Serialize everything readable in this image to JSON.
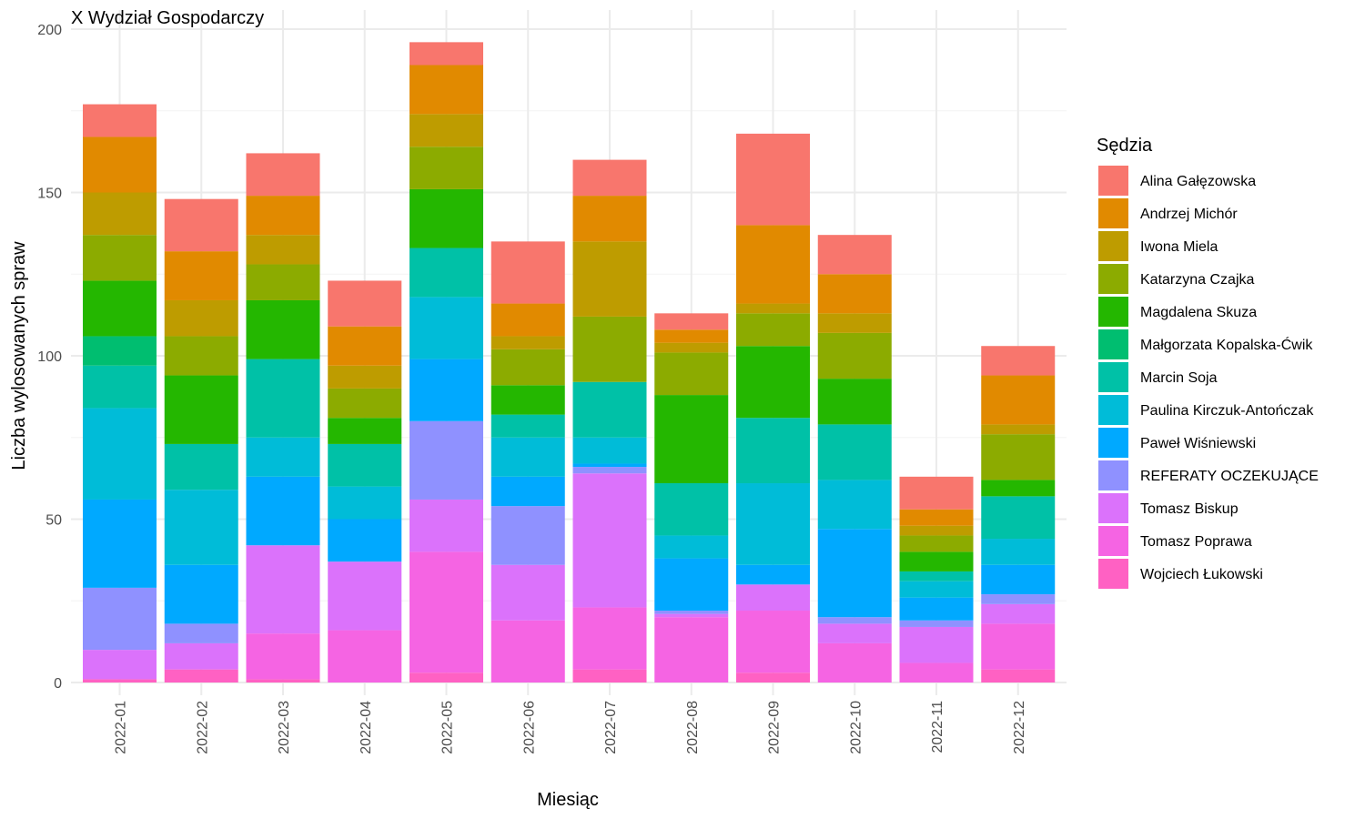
{
  "chart_data": {
    "type": "bar",
    "stacked": true,
    "title": "X Wydział Gospodarczy",
    "xlabel": "Miesiąc",
    "ylabel": "Liczba wylosowanych spraw",
    "ylim": [
      0,
      200
    ],
    "yticks": [
      0,
      50,
      100,
      150,
      200
    ],
    "grid": true,
    "legend": {
      "title": "Sędzia",
      "position": "right"
    },
    "categories": [
      "2022-01",
      "2022-02",
      "2022-03",
      "2022-04",
      "2022-05",
      "2022-06",
      "2022-07",
      "2022-08",
      "2022-09",
      "2022-10",
      "2022-11",
      "2022-12"
    ],
    "series": [
      {
        "name": "Wojciech Łukowski",
        "color": "#FF61C3",
        "values": [
          1,
          4,
          1,
          0,
          3,
          0,
          4,
          0,
          3,
          0,
          0,
          4
        ]
      },
      {
        "name": "Tomasz Poprawa",
        "color": "#F564E3",
        "values": [
          0,
          0,
          14,
          16,
          37,
          19,
          19,
          20,
          19,
          12,
          6,
          14
        ]
      },
      {
        "name": "Tomasz Biskup",
        "color": "#DB72FB",
        "values": [
          9,
          8,
          27,
          21,
          16,
          17,
          41,
          1,
          8,
          6,
          11,
          6
        ]
      },
      {
        "name": "REFERATY OCZEKUJĄCE",
        "color": "#8F91FF",
        "values": [
          19,
          6,
          0,
          0,
          24,
          18,
          2,
          1,
          0,
          2,
          2,
          3
        ]
      },
      {
        "name": "Paweł Wiśniewski",
        "color": "#00A9FF",
        "values": [
          27,
          18,
          21,
          13,
          19,
          9,
          1,
          16,
          6,
          27,
          7,
          9
        ]
      },
      {
        "name": "Paulina Kirczuk-Antończak",
        "color": "#00BCD8",
        "values": [
          28,
          23,
          12,
          10,
          19,
          12,
          8,
          7,
          25,
          15,
          5,
          8
        ]
      },
      {
        "name": "Marcin Soja",
        "color": "#00C1A7",
        "values": [
          13,
          14,
          24,
          13,
          15,
          7,
          17,
          16,
          20,
          17,
          3,
          13
        ]
      },
      {
        "name": "Małgorzata Kopalska-Ćwik",
        "color": "#00BE70",
        "values": [
          9,
          0,
          0,
          0,
          0,
          0,
          0,
          0,
          0,
          0,
          0,
          0
        ]
      },
      {
        "name": "Magdalena Skuza",
        "color": "#24B700",
        "values": [
          17,
          21,
          18,
          8,
          18,
          9,
          0,
          27,
          22,
          14,
          6,
          5
        ]
      },
      {
        "name": "Katarzyna Czajka",
        "color": "#8CAB00",
        "values": [
          14,
          12,
          11,
          9,
          13,
          11,
          20,
          13,
          10,
          14,
          5,
          14
        ]
      },
      {
        "name": "Iwona Miela",
        "color": "#BE9C00",
        "values": [
          13,
          11,
          9,
          7,
          10,
          4,
          23,
          3,
          3,
          6,
          3,
          3
        ]
      },
      {
        "name": "Andrzej Michór",
        "color": "#E18A00",
        "values": [
          17,
          15,
          12,
          12,
          15,
          10,
          14,
          4,
          24,
          12,
          5,
          15
        ]
      },
      {
        "name": "Alina Gałęzowska",
        "color": "#F8766D",
        "values": [
          10,
          16,
          13,
          14,
          7,
          19,
          11,
          5,
          28,
          12,
          10,
          9
        ]
      }
    ],
    "legend_order": [
      "Alina Gałęzowska",
      "Andrzej Michór",
      "Iwona Miela",
      "Katarzyna Czajka",
      "Magdalena Skuza",
      "Małgorzata Kopalska-Ćwik",
      "Marcin Soja",
      "Paulina Kirczuk-Antończak",
      "Paweł Wiśniewski",
      "REFERATY OCZEKUJĄCE",
      "Tomasz Biskup",
      "Tomasz Poprawa",
      "Wojciech Łukowski"
    ]
  }
}
